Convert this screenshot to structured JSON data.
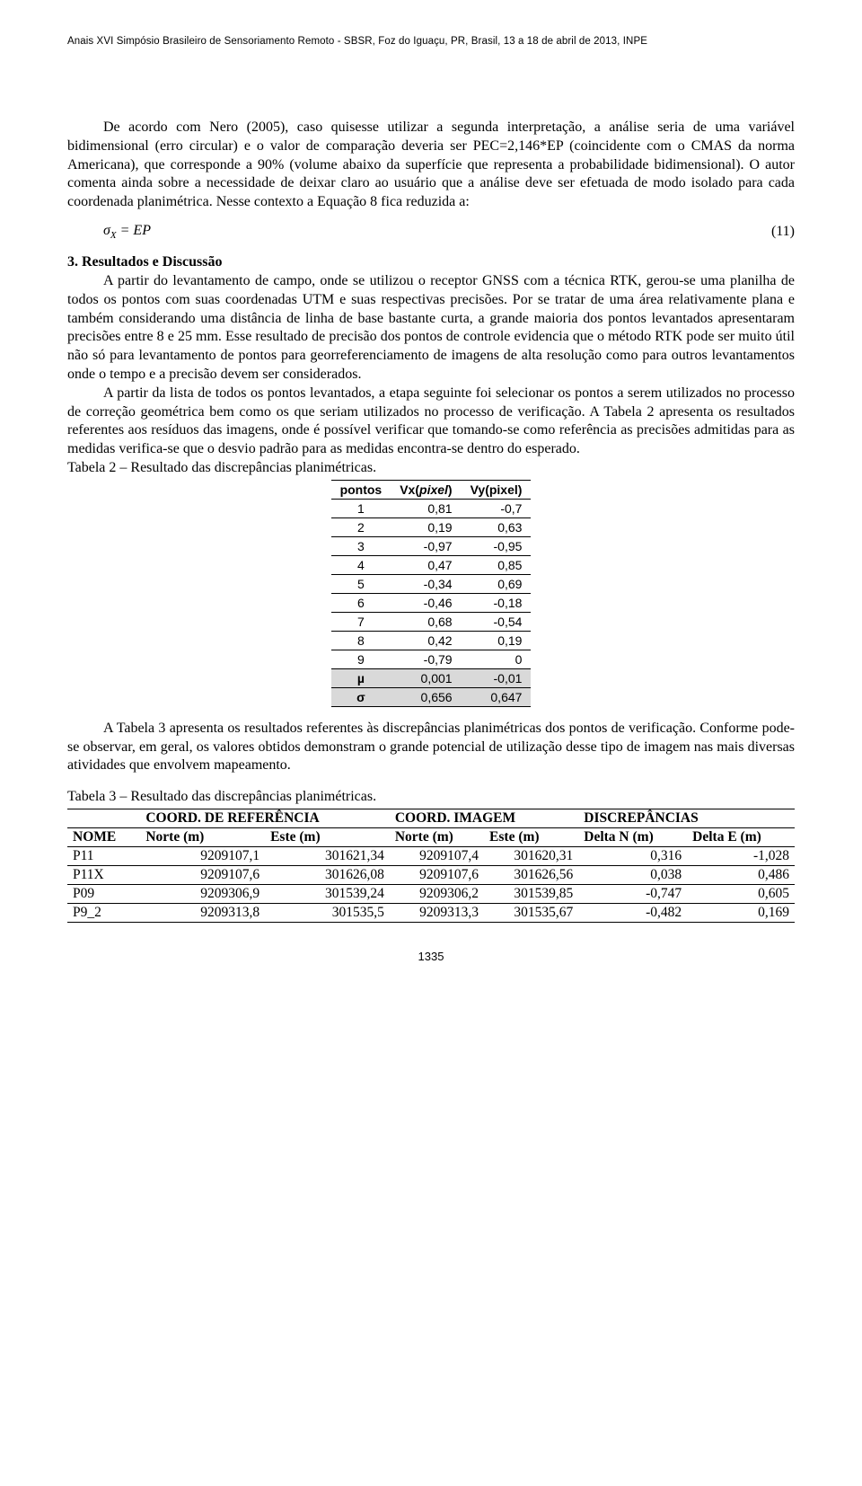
{
  "header": "Anais XVI Simpósio Brasileiro de Sensoriamento Remoto - SBSR, Foz do Iguaçu, PR, Brasil, 13 a 18 de abril de 2013, INPE",
  "para1": "De acordo com Nero (2005), caso quisesse utilizar a segunda interpretação, a análise seria de uma variável bidimensional (erro circular) e o valor de comparação deveria ser PEC=2,146*EP (coincidente com o CMAS da norma Americana), que corresponde a 90% (volume abaixo da superfície que representa a probabilidade bidimensional). O autor comenta ainda sobre a necessidade de deixar claro ao usuário que a análise deve ser efetuada de modo isolado para cada coordenada planimétrica. Nesse contexto a Equação 8 fica reduzida a:",
  "equation": {
    "body": "σ<span class=\"sub\">X</span> = EP",
    "num": "(11)"
  },
  "section3_title": "3. Resultados e Discussão",
  "para2": "A partir do levantamento de campo, onde se utilizou o receptor GNSS com a técnica RTK, gerou-se uma planilha de todos os pontos com suas coordenadas UTM e suas respectivas precisões. Por se tratar de uma área relativamente plana e também considerando uma distância de linha de base bastante curta, a grande maioria dos pontos levantados apresentaram precisões entre 8 e 25 mm. Esse resultado de precisão dos pontos de controle evidencia que o método RTK pode ser muito útil não só para levantamento de pontos para georreferenciamento de imagens de alta resolução como para outros levantamentos onde o tempo e a precisão devem ser considerados.",
  "para3": "A partir da lista de todos os pontos levantados, a etapa seguinte foi selecionar os pontos a serem utilizados no processo de correção geométrica bem como os que seriam utilizados no processo de verificação. A Tabela 2 apresenta os resultados referentes aos resíduos das imagens, onde é possível verificar que tomando-se como referência as precisões admitidas para as medidas verifica-se que o desvio padrão para as medidas encontra-se dentro do esperado.",
  "table2": {
    "caption": "Tabela 2 – Resultado das discrepâncias planimétricas.",
    "headers": [
      "pontos",
      "Vx(pixel)",
      "Vy(pixel)"
    ],
    "rows": [
      [
        "1",
        "0,81",
        "-0,7"
      ],
      [
        "2",
        "0,19",
        "0,63"
      ],
      [
        "3",
        "-0,97",
        "-0,95"
      ],
      [
        "4",
        "0,47",
        "0,85"
      ],
      [
        "5",
        "-0,34",
        "0,69"
      ],
      [
        "6",
        "-0,46",
        "-0,18"
      ],
      [
        "7",
        "0,68",
        "-0,54"
      ],
      [
        "8",
        "0,42",
        "0,19"
      ],
      [
        "9",
        "-0,79",
        "0"
      ]
    ],
    "stats": [
      [
        "µ",
        "0,001",
        "-0,01"
      ],
      [
        "σ",
        "0,656",
        "0,647"
      ]
    ]
  },
  "para4": "A Tabela 3 apresenta os resultados referentes às discrepâncias planimétricas dos pontos de verificação. Conforme pode-se observar, em geral, os valores obtidos demonstram o grande potencial de utilização desse tipo de imagem nas mais diversas atividades que envolvem mapeamento.",
  "table3": {
    "caption": "Tabela 3 – Resultado das discrepâncias planimétricas.",
    "group_headers": [
      "",
      "COORD. DE REFERÊNCIA",
      "COORD. IMAGEM",
      "DISCREPÂNCIAS"
    ],
    "sub_headers": [
      "NOME",
      "Norte (m)",
      "Este (m)",
      "Norte (m)",
      "Este (m)",
      "Delta N (m)",
      "Delta E (m)"
    ],
    "rows": [
      [
        "P11",
        "9209107,1",
        "301621,34",
        "9209107,4",
        "301620,31",
        "0,316",
        "-1,028"
      ],
      [
        "P11X",
        "9209107,6",
        "301626,08",
        "9209107,6",
        "301626,56",
        "0,038",
        "0,486"
      ],
      [
        "P09",
        "9209306,9",
        "301539,24",
        "9209306,2",
        "301539,85",
        "-0,747",
        "0,605"
      ],
      [
        "P9_2",
        "9209313,8",
        "301535,5",
        "9209313,3",
        "301535,67",
        "-0,482",
        "0,169"
      ]
    ]
  },
  "page_number": "1335"
}
